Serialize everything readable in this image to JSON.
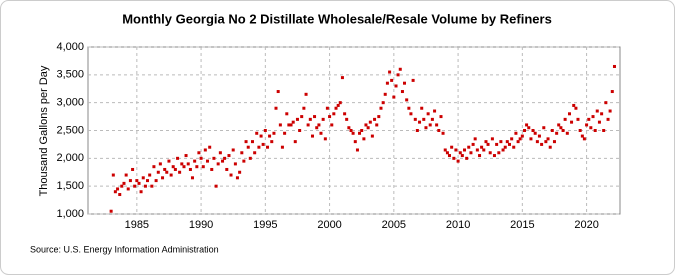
{
  "chart_data": {
    "type": "scatter",
    "title": "Monthly Georgia No 2 Distillate Wholesale/Resale Volume by Refiners",
    "y_label": "Thousand Gallons per Day",
    "source": "Source: U.S. Energy Information Administration",
    "color": "#cc0000",
    "grid": true,
    "xlim": [
      1981.2,
      2022.6
    ],
    "ylim": [
      1000,
      4000
    ],
    "xticks": [
      1985,
      1990,
      1995,
      2000,
      2005,
      2010,
      2015,
      2020
    ],
    "yticks": [
      {
        "value": 1000,
        "label": "1,000"
      },
      {
        "value": 1500,
        "label": "1,500"
      },
      {
        "value": 2000,
        "label": "2,000"
      },
      {
        "value": 2500,
        "label": "2,500"
      },
      {
        "value": 3000,
        "label": "3,000"
      },
      {
        "value": 3500,
        "label": "3,500"
      },
      {
        "value": 4000,
        "label": "4,000"
      }
    ],
    "x": [
      1983.0,
      1983.17,
      1983.33,
      1983.5,
      1983.67,
      1983.83,
      1984.0,
      1984.17,
      1984.33,
      1984.5,
      1984.67,
      1984.83,
      1985.0,
      1985.17,
      1985.33,
      1985.5,
      1985.67,
      1985.83,
      1986.0,
      1986.17,
      1986.33,
      1986.5,
      1986.67,
      1986.83,
      1987.0,
      1987.17,
      1987.33,
      1987.5,
      1987.67,
      1987.83,
      1988.0,
      1988.17,
      1988.33,
      1988.5,
      1988.67,
      1988.83,
      1989.0,
      1989.17,
      1989.33,
      1989.5,
      1989.67,
      1989.83,
      1990.0,
      1990.17,
      1990.33,
      1990.5,
      1990.67,
      1990.83,
      1991.0,
      1991.17,
      1991.33,
      1991.5,
      1991.67,
      1991.83,
      1992.0,
      1992.17,
      1992.33,
      1992.5,
      1992.67,
      1992.83,
      1993.0,
      1993.17,
      1993.33,
      1993.5,
      1993.67,
      1993.83,
      1994.0,
      1994.17,
      1994.33,
      1994.5,
      1994.67,
      1994.83,
      1995.0,
      1995.17,
      1995.33,
      1995.5,
      1995.67,
      1995.83,
      1996.0,
      1996.17,
      1996.33,
      1996.5,
      1996.67,
      1996.83,
      1997.0,
      1997.17,
      1997.33,
      1997.5,
      1997.67,
      1997.83,
      1998.0,
      1998.17,
      1998.33,
      1998.5,
      1998.67,
      1998.83,
      1999.0,
      1999.17,
      1999.33,
      1999.5,
      1999.67,
      1999.83,
      2000.0,
      2000.17,
      2000.33,
      2000.5,
      2000.67,
      2000.83,
      2001.0,
      2001.17,
      2001.33,
      2001.5,
      2001.67,
      2001.83,
      2002.0,
      2002.17,
      2002.33,
      2002.5,
      2002.67,
      2002.83,
      2003.0,
      2003.17,
      2003.33,
      2003.5,
      2003.67,
      2003.83,
      2004.0,
      2004.17,
      2004.33,
      2004.5,
      2004.67,
      2004.83,
      2005.0,
      2005.17,
      2005.33,
      2005.5,
      2005.67,
      2005.83,
      2006.0,
      2006.17,
      2006.33,
      2006.5,
      2006.67,
      2006.83,
      2007.0,
      2007.17,
      2007.33,
      2007.5,
      2007.67,
      2007.83,
      2008.0,
      2008.17,
      2008.33,
      2008.5,
      2008.67,
      2008.83,
      2009.0,
      2009.17,
      2009.33,
      2009.5,
      2009.67,
      2009.83,
      2010.0,
      2010.17,
      2010.33,
      2010.5,
      2010.67,
      2010.83,
      2011.0,
      2011.17,
      2011.33,
      2011.5,
      2011.67,
      2011.83,
      2012.0,
      2012.17,
      2012.33,
      2012.5,
      2012.67,
      2012.83,
      2013.0,
      2013.17,
      2013.33,
      2013.5,
      2013.67,
      2013.83,
      2014.0,
      2014.17,
      2014.33,
      2014.5,
      2014.67,
      2014.83,
      2015.0,
      2015.17,
      2015.33,
      2015.5,
      2015.67,
      2015.83,
      2016.0,
      2016.17,
      2016.33,
      2016.5,
      2016.67,
      2016.83,
      2017.0,
      2017.17,
      2017.33,
      2017.5,
      2017.67,
      2017.83,
      2018.0,
      2018.17,
      2018.33,
      2018.5,
      2018.67,
      2018.83,
      2019.0,
      2019.17,
      2019.33,
      2019.5,
      2019.67,
      2019.83,
      2020.0,
      2020.17,
      2020.33,
      2020.5,
      2020.67,
      2020.83,
      2021.0,
      2021.17,
      2021.33,
      2021.5,
      2021.67,
      2021.83,
      2022.0,
      2022.17
    ],
    "values": [
      1050,
      1700,
      1400,
      1450,
      1350,
      1500,
      1550,
      1700,
      1450,
      1600,
      1800,
      1500,
      1600,
      1550,
      1400,
      1650,
      1500,
      1600,
      1700,
      1500,
      1850,
      1600,
      1750,
      1900,
      1650,
      1800,
      1750,
      1950,
      1700,
      1850,
      1800,
      2000,
      1750,
      1900,
      1850,
      2050,
      1900,
      1800,
      1650,
      1950,
      1850,
      2100,
      2000,
      1850,
      2150,
      1950,
      2200,
      1800,
      2000,
      1500,
      1900,
      2100,
      1950,
      2000,
      1800,
      2050,
      1700,
      2150,
      1900,
      1650,
      1750,
      2100,
      1950,
      2300,
      2200,
      2000,
      2300,
      2100,
      2450,
      2200,
      2400,
      2250,
      2500,
      2200,
      2400,
      2300,
      2450,
      2900,
      3200,
      2600,
      2200,
      2450,
      2800,
      2600,
      2600,
      2650,
      2300,
      2700,
      2500,
      2750,
      2900,
      3150,
      2600,
      2700,
      2400,
      2750,
      2550,
      2600,
      2450,
      2700,
      2350,
      2900,
      2750,
      2600,
      2800,
      2900,
      2950,
      3000,
      3450,
      2800,
      2700,
      2550,
      2500,
      2450,
      2300,
      2150,
      2450,
      2500,
      2350,
      2600,
      2550,
      2650,
      2400,
      2700,
      2600,
      2750,
      2900,
      3000,
      3150,
      3350,
      3550,
      3400,
      3100,
      3300,
      3500,
      3600,
      3200,
      3350,
      3050,
      2900,
      2800,
      3400,
      2700,
      2500,
      2650,
      2900,
      2700,
      2550,
      2800,
      2600,
      2700,
      2850,
      2600,
      2500,
      2750,
      2450,
      2150,
      2100,
      2050,
      2200,
      2000,
      2150,
      1950,
      2100,
      2050,
      2150,
      2000,
      2200,
      2100,
      2250,
      2350,
      2150,
      2050,
      2200,
      2150,
      2300,
      2250,
      2100,
      2350,
      2050,
      2250,
      2100,
      2300,
      2150,
      2200,
      2300,
      2250,
      2350,
      2200,
      2450,
      2300,
      2350,
      2400,
      2500,
      2600,
      2550,
      2350,
      2500,
      2450,
      2300,
      2400,
      2250,
      2550,
      2300,
      2350,
      2200,
      2500,
      2300,
      2450,
      2600,
      2550,
      2500,
      2700,
      2450,
      2800,
      2650,
      2950,
      2900,
      2700,
      2500,
      2400,
      2350,
      2600,
      2700,
      2550,
      2750,
      2500,
      2850,
      2650,
      2800,
      2500,
      3000,
      2700,
      2850,
      3200,
      3650
    ]
  }
}
